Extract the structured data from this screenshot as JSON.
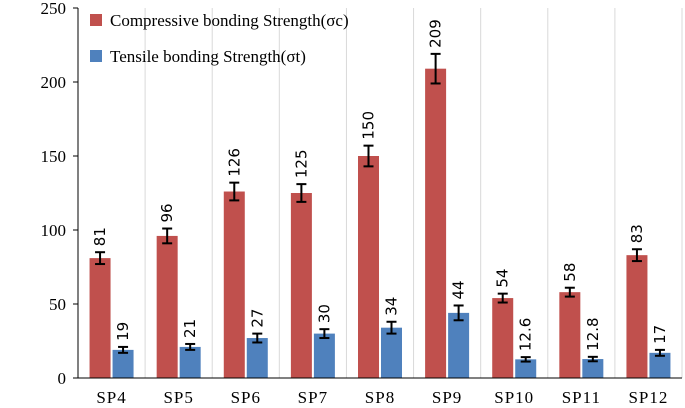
{
  "chart_data": {
    "type": "bar",
    "title": "",
    "xlabel": "",
    "ylabel": "",
    "ylim": [
      0,
      250
    ],
    "yticks": [
      0,
      50,
      100,
      150,
      200,
      250
    ],
    "grid": "vertical",
    "legend_position": "top-left",
    "categories": [
      "SP4",
      "SP5",
      "SP6",
      "SP7",
      "SP8",
      "SP9",
      "SP10",
      "SP11",
      "SP12"
    ],
    "series": [
      {
        "name": "Compressive bonding Strength(σc)",
        "color": "#c0504d",
        "values": [
          81,
          96,
          126,
          125,
          150,
          209,
          54,
          58,
          83
        ],
        "labels": [
          "81",
          "96",
          "126",
          "125",
          "150",
          "209",
          "54",
          "58",
          "83"
        ],
        "errors": [
          4,
          5,
          6,
          6,
          7,
          10,
          3,
          3,
          4
        ]
      },
      {
        "name": "Tensile bonding Strength(σt)",
        "color": "#4f81bd",
        "values": [
          19,
          21,
          27,
          30,
          34,
          44,
          12.6,
          12.8,
          17
        ],
        "labels": [
          "19",
          "21",
          "27",
          "30",
          "34",
          "44",
          "12.6",
          "12.8",
          "17"
        ],
        "errors": [
          2,
          2,
          3,
          3,
          4,
          5,
          1.5,
          1.5,
          2
        ]
      }
    ]
  }
}
